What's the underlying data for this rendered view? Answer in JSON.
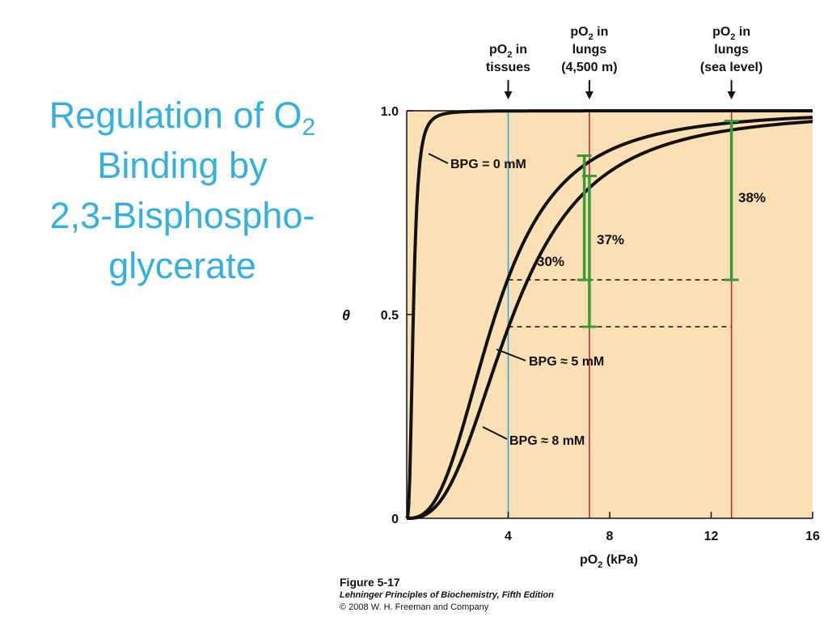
{
  "slide": {
    "title_lines": [
      "Regulation of O",
      "Binding by",
      "2,3-Bisphospho-",
      "glycerate"
    ],
    "title_subscript": "2"
  },
  "chart_data": {
    "type": "line",
    "xlabel": "pO2 (kPa)",
    "ylabel": "θ",
    "xlim": [
      0,
      16
    ],
    "ylim": [
      0,
      1
    ],
    "x_ticks": [
      "4",
      "8",
      "12",
      "16"
    ],
    "y_ticks": [
      "0",
      "0.5",
      "1.0"
    ],
    "grid": false,
    "background": "#fbdfb5",
    "series": [
      {
        "name": "BPG = 0 mM",
        "p50": 0.26,
        "n": 2.8,
        "color": "#111111"
      },
      {
        "name": "BPG ≈ 5 mM",
        "p50": 3.5,
        "n": 2.7,
        "color": "#111111"
      },
      {
        "name": "BPG ≈ 8 mM",
        "p50": 4.2,
        "n": 2.7,
        "color": "#111111"
      }
    ],
    "reference_lines": [
      {
        "label": [
          "pO",
          "2",
          " in",
          "tissues"
        ],
        "x": 4,
        "color": "#3aa3d8"
      },
      {
        "label": [
          "pO",
          "2",
          " in",
          "lungs",
          "(4,500 m)"
        ],
        "x": 7.2,
        "color": "#c0283a"
      },
      {
        "label": [
          "pO",
          "2",
          " in",
          "lungs",
          "(sea level)"
        ],
        "x": 12.8,
        "color": "#c0283a"
      }
    ],
    "differences": [
      {
        "label": "30%",
        "x": 7.0,
        "from": 0.585,
        "to": 0.89
      },
      {
        "label": "37%",
        "x": 7.2,
        "from": 0.47,
        "to": 0.84
      },
      {
        "label": "38%",
        "x": 12.8,
        "from": 0.585,
        "to": 0.975
      }
    ],
    "dashed_levels": [
      {
        "y": 0.585,
        "from_x": 4,
        "to_x": 12.8
      },
      {
        "y": 0.47,
        "from_x": 4,
        "to_x": 12.8
      }
    ],
    "accent_color": "#3a9b35"
  },
  "caption": {
    "figure": "Figure 5-17",
    "book": "Lehninger Principles of Biochemistry, Fifth Edition",
    "copyright": "© 2008 W. H. Freeman and Company"
  }
}
